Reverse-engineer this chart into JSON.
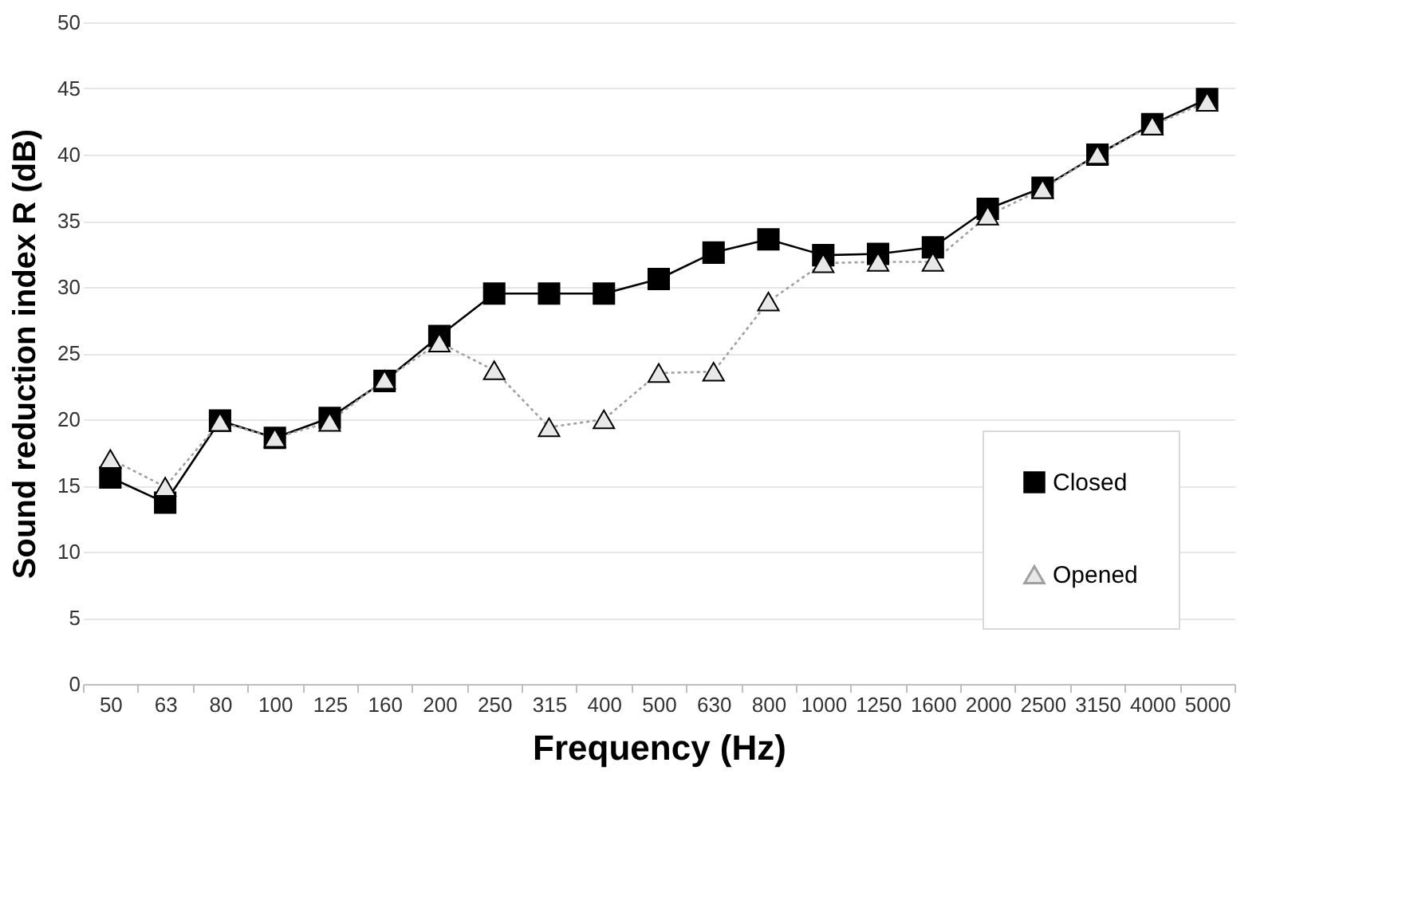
{
  "chart_data": {
    "type": "line",
    "xlabel": "Frequency (Hz)",
    "ylabel": "Sound reduction index R (dB)",
    "categories": [
      "50",
      "63",
      "80",
      "100",
      "125",
      "160",
      "200",
      "250",
      "315",
      "400",
      "500",
      "630",
      "800",
      "1000",
      "1250",
      "1600",
      "2000",
      "2500",
      "3150",
      "4000",
      "5000"
    ],
    "series": [
      {
        "name": "Closed",
        "color": "#000000",
        "marker": "square",
        "line_style": "solid",
        "values": [
          15.6,
          13.7,
          19.9,
          18.6,
          20.1,
          22.9,
          26.3,
          29.5,
          29.5,
          29.5,
          30.6,
          32.6,
          33.6,
          32.4,
          32.5,
          33.0,
          35.9,
          37.5,
          40.0,
          42.3,
          44.2
        ]
      },
      {
        "name": "Opened",
        "color": "#a0a0a0",
        "marker": "triangle",
        "line_style": "dotted",
        "values": [
          17.0,
          14.9,
          19.8,
          18.6,
          19.8,
          23.0,
          25.8,
          23.7,
          19.4,
          20.0,
          23.5,
          23.6,
          28.9,
          31.8,
          31.9,
          31.9,
          35.4,
          37.4,
          40.0,
          42.2,
          44.0
        ]
      }
    ],
    "ylim": [
      0,
      50
    ],
    "yticks": [
      0,
      5,
      10,
      15,
      20,
      25,
      30,
      35,
      40,
      45,
      50
    ],
    "grid": "y",
    "legend": "bottom right"
  }
}
